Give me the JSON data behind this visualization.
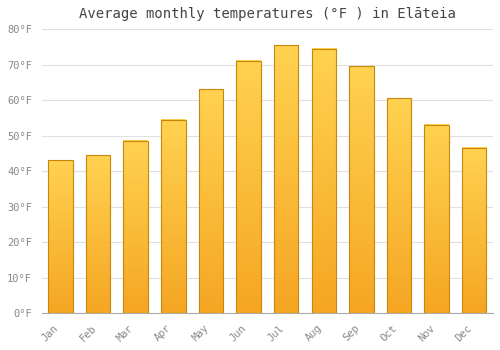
{
  "title": "Average monthly temperatures (°F ) in Elāteia",
  "months": [
    "Jan",
    "Feb",
    "Mar",
    "Apr",
    "May",
    "Jun",
    "Jul",
    "Aug",
    "Sep",
    "Oct",
    "Nov",
    "Dec"
  ],
  "values": [
    43,
    44.5,
    48.5,
    54.5,
    63,
    71,
    75.5,
    74.5,
    69.5,
    60.5,
    53,
    46.5
  ],
  "bar_color_bottom": "#F5A623",
  "bar_color_top": "#FFD966",
  "bar_edge_color": "#C8860A",
  "ylim": [
    0,
    80
  ],
  "yticks": [
    0,
    10,
    20,
    30,
    40,
    50,
    60,
    70,
    80
  ],
  "ytick_labels": [
    "0°F",
    "10°F",
    "20°F",
    "30°F",
    "40°F",
    "50°F",
    "60°F",
    "70°F",
    "80°F"
  ],
  "bg_color": "#FFFFFF",
  "grid_color": "#E0E0E0",
  "title_fontsize": 10,
  "tick_fontsize": 7.5,
  "bar_width": 0.65
}
